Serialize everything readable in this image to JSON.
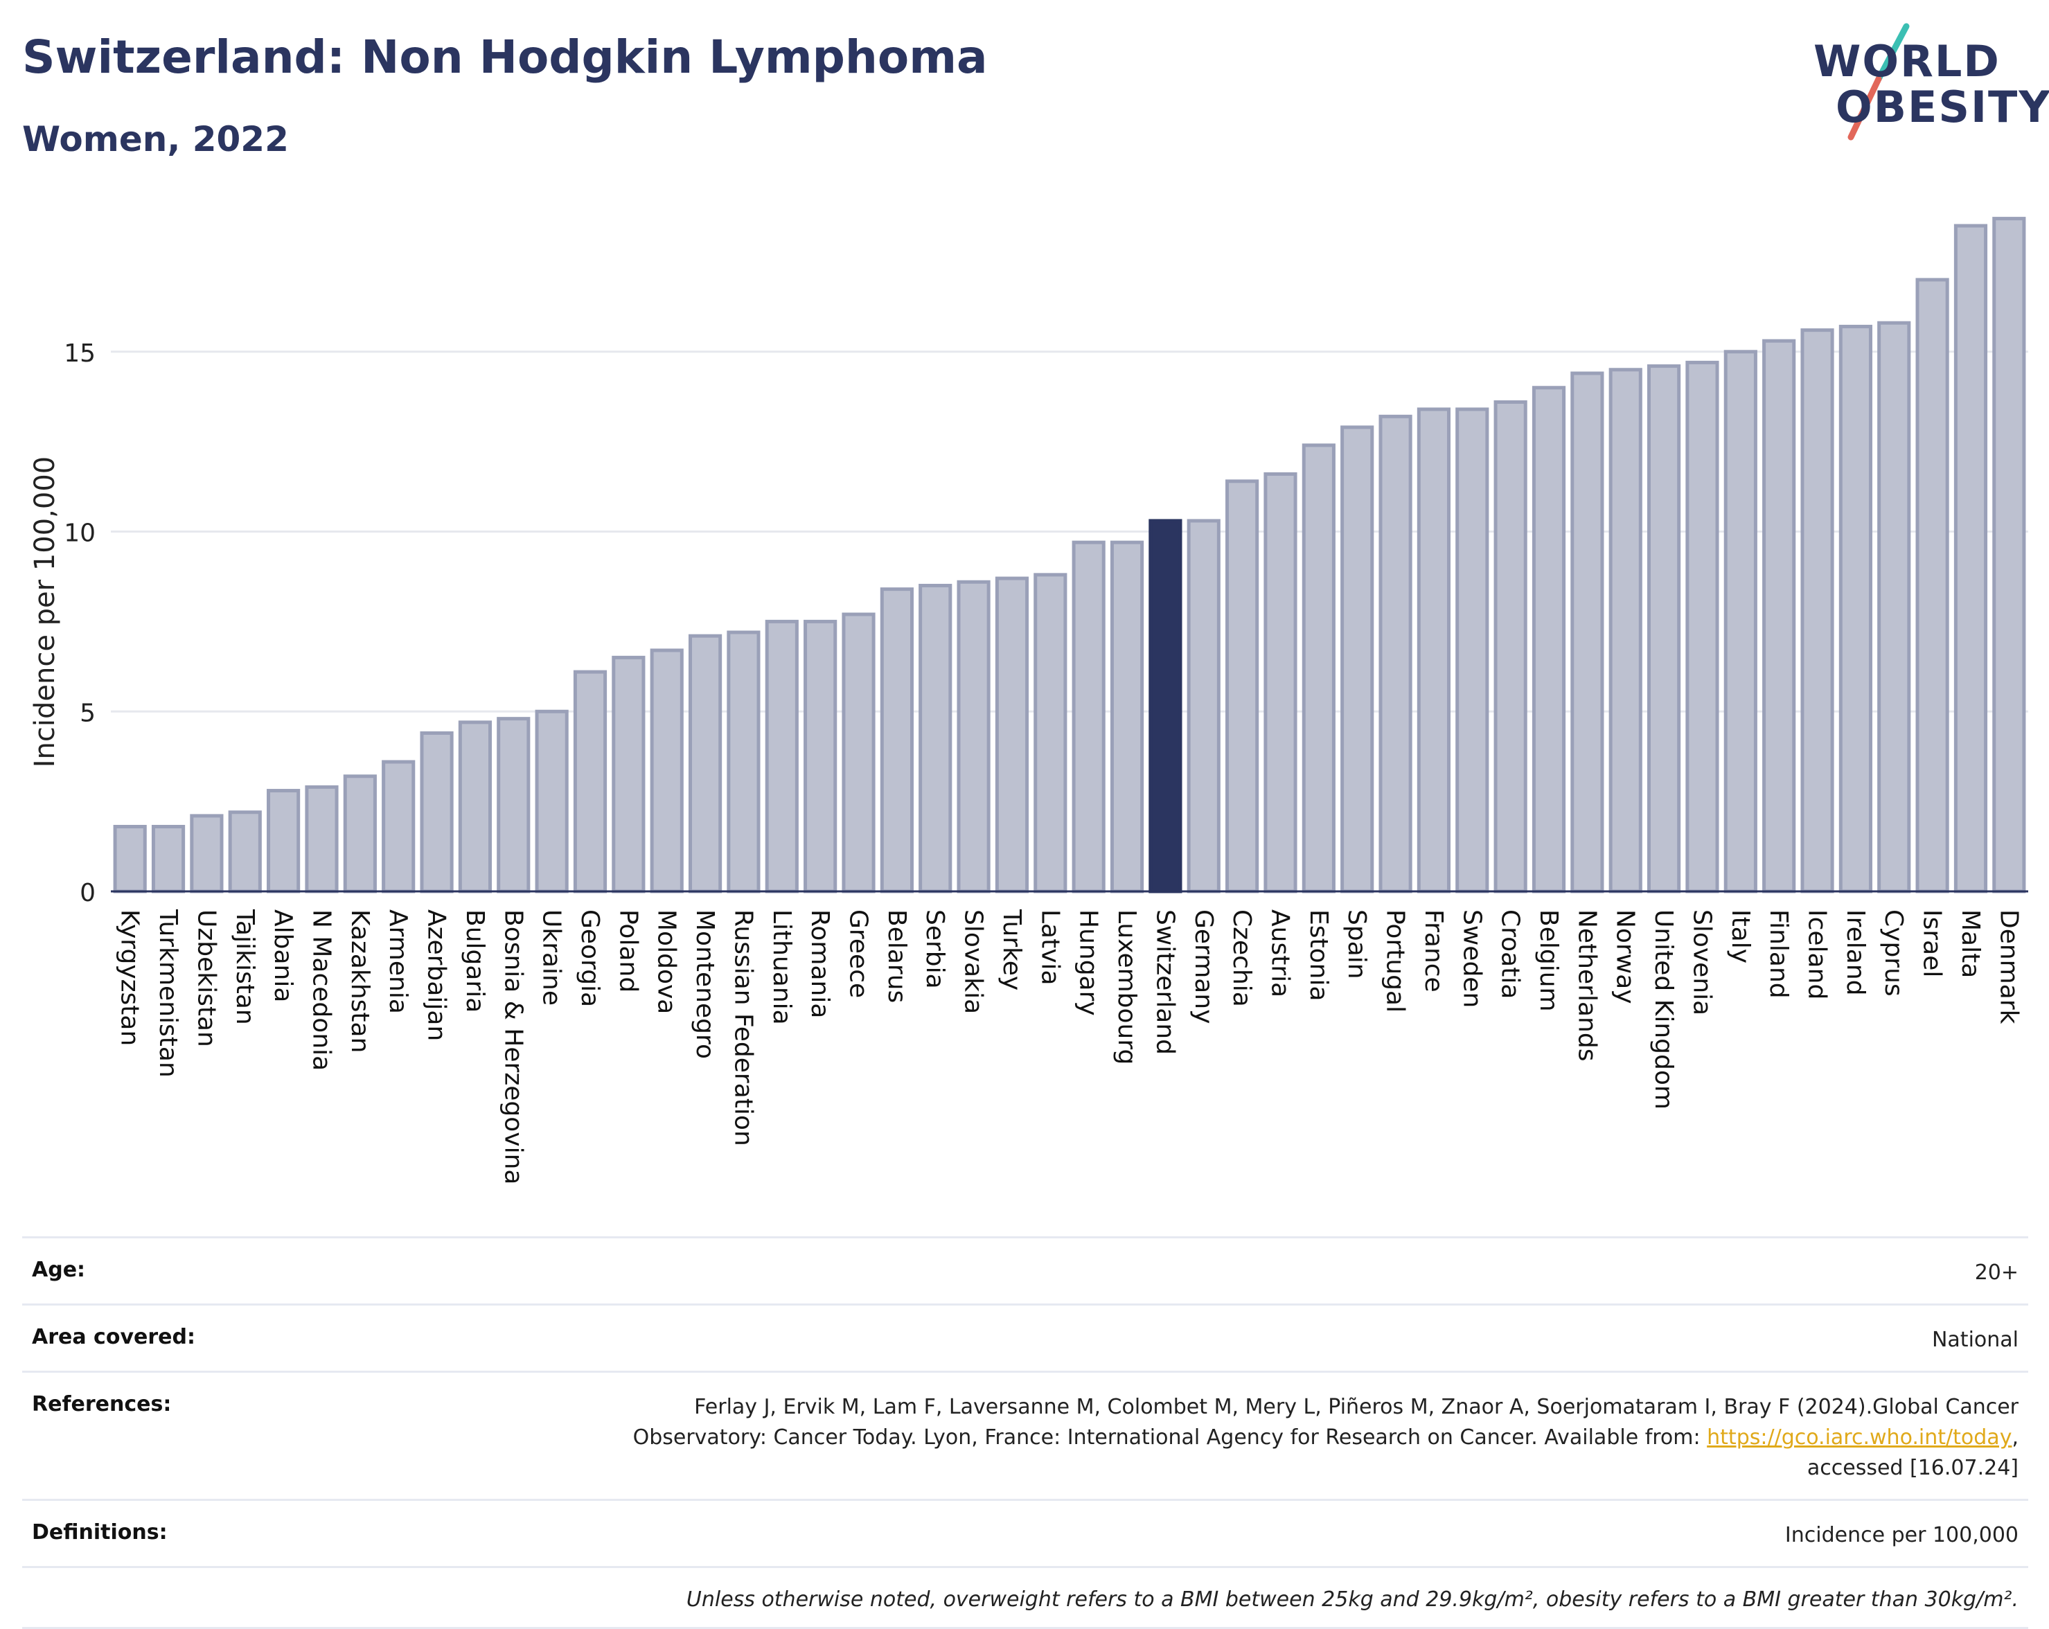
{
  "header": {
    "title": "Switzerland: Non Hodgkin Lymphoma",
    "subtitle": "Women, 2022"
  },
  "logo": {
    "line1": "WORLD",
    "line2": "OBESITY",
    "colors": {
      "text": "#2b3560",
      "slash_top": "#3bbfb3",
      "slash_bottom": "#e2675a"
    }
  },
  "chart_data": {
    "type": "bar",
    "ylabel": "Incidence per 100,000",
    "xlabel": "",
    "ylim": [
      0,
      19
    ],
    "yticks": [
      0,
      5,
      10,
      15
    ],
    "highlight": "Switzerland",
    "colors": {
      "bar": "#bdc1d0",
      "bar_edge": "#9aa0b8",
      "highlight": "#2b3560",
      "grid": "#e6e8ee"
    },
    "categories": [
      "Kyrgyzstan",
      "Turkmenistan",
      "Uzbekistan",
      "Tajikistan",
      "Albania",
      "N Macedonia",
      "Kazakhstan",
      "Armenia",
      "Azerbaijan",
      "Bulgaria",
      "Bosnia & Herzegovina",
      "Ukraine",
      "Georgia",
      "Poland",
      "Moldova",
      "Montenegro",
      "Russian Federation",
      "Lithuania",
      "Romania",
      "Greece",
      "Belarus",
      "Serbia",
      "Slovakia",
      "Turkey",
      "Latvia",
      "Hungary",
      "Luxembourg",
      "Switzerland",
      "Germany",
      "Czechia",
      "Austria",
      "Estonia",
      "Spain",
      "Portugal",
      "France",
      "Sweden",
      "Croatia",
      "Belgium",
      "Netherlands",
      "Norway",
      "United Kingdom",
      "Slovenia",
      "Italy",
      "Finland",
      "Iceland",
      "Ireland",
      "Cyprus",
      "Israel",
      "Malta",
      "Denmark"
    ],
    "values": [
      1.8,
      1.8,
      2.1,
      2.2,
      2.8,
      2.9,
      3.2,
      3.6,
      4.4,
      4.7,
      4.8,
      5.0,
      6.1,
      6.5,
      6.7,
      7.1,
      7.2,
      7.5,
      7.5,
      7.7,
      8.4,
      8.5,
      8.6,
      8.7,
      8.8,
      9.7,
      9.7,
      10.3,
      10.3,
      11.4,
      11.6,
      12.4,
      12.9,
      13.2,
      13.4,
      13.4,
      13.6,
      14.0,
      14.4,
      14.5,
      14.6,
      14.7,
      15.0,
      15.3,
      15.6,
      15.7,
      15.8,
      17.0,
      18.5,
      18.7
    ]
  },
  "info": {
    "age_label": "Age:",
    "age_value": "20+",
    "area_label": "Area covered:",
    "area_value": "National",
    "references_label": "References:",
    "references_line1": "Ferlay J, Ervik M, Lam F, Laversanne M, Colombet M, Mery L, Piñeros M, Znaor A, Soerjomataram I, Bray F (2024).Global Cancer",
    "references_line2": "Observatory: Cancer Today. Lyon, France: International Agency for Research on Cancer. Available from: ",
    "references_link": "https://gco.iarc.who.int/today",
    "references_line3": "accessed [16.07.24]",
    "definitions_label": "Definitions:",
    "definitions_value": "Incidence per 100,000",
    "note": "Unless otherwise noted, overweight refers to a BMI between 25kg and 29.9kg/m², obesity refers to a BMI greater than 30kg/m²."
  }
}
